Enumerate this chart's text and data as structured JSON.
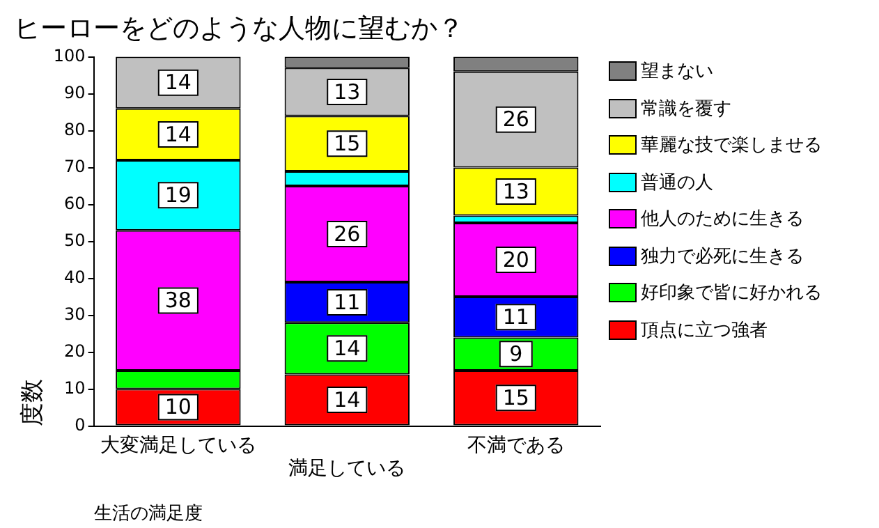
{
  "chart_data": {
    "type": "bar",
    "title": "ヒーローをどのような人物に望むか？",
    "xlabel": "生活の満足度",
    "ylabel": "度数",
    "stacked": true,
    "legend": "right",
    "grid": false,
    "categories": [
      "大変満足している",
      "満足している",
      "不満である"
    ],
    "ylim": [
      0,
      100
    ],
    "yticks": [
      0,
      10,
      20,
      30,
      40,
      50,
      60,
      70,
      80,
      90,
      100
    ],
    "series": [
      {
        "name": "頂点に立つ強者",
        "color": "#ff0000",
        "values": [
          10,
          14,
          15
        ],
        "value_labels": [
          "10",
          "14",
          "15"
        ]
      },
      {
        "name": "好印象で皆に好かれる",
        "color": "#00ff00",
        "values": [
          5,
          14,
          9
        ],
        "value_labels": [
          null,
          "14",
          "9"
        ]
      },
      {
        "name": "独力で必死に生きる",
        "color": "#0000ff",
        "values": [
          null,
          11,
          11
        ],
        "value_labels": [
          null,
          "11",
          "11"
        ]
      },
      {
        "name": "他人のために生きる",
        "color": "#ff00ff",
        "values": [
          38,
          26,
          20
        ],
        "value_labels": [
          "38",
          "26",
          "20"
        ]
      },
      {
        "name": "普通の人",
        "color": "#00ffff",
        "values": [
          19,
          4,
          2
        ],
        "value_labels": [
          "19",
          null,
          null
        ]
      },
      {
        "name": "華麗な技で楽しませる",
        "color": "#ffff00",
        "values": [
          14,
          15,
          13
        ],
        "value_labels": [
          "14",
          "15",
          "13"
        ]
      },
      {
        "name": "常識を覆す",
        "color": "#c0c0c0",
        "values": [
          14,
          13,
          26
        ],
        "value_labels": [
          "14",
          "13",
          "26"
        ]
      },
      {
        "name": "望まない",
        "color": "#808080",
        "values": [
          null,
          3,
          4
        ],
        "value_labels": [
          null,
          null,
          null
        ]
      }
    ]
  }
}
